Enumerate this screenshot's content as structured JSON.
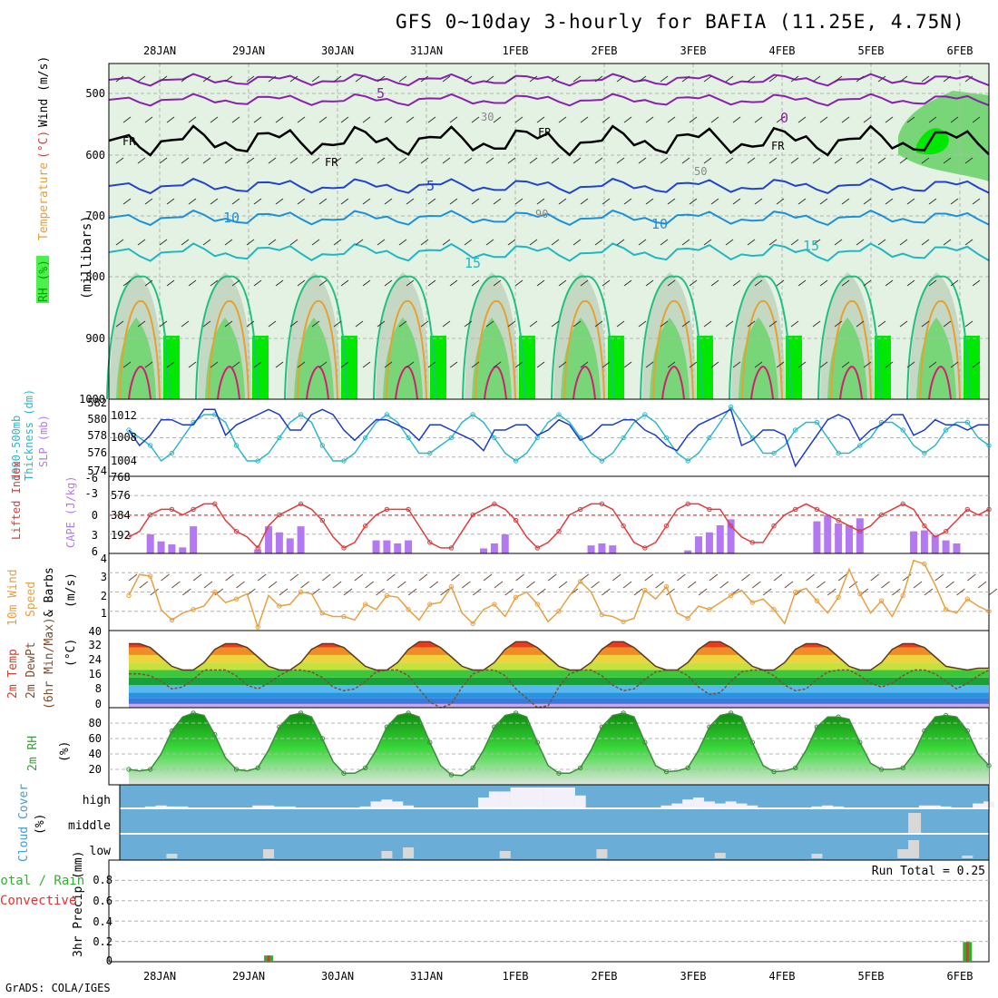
{
  "title": "GFS 0~10day 3-hourly for BAFIA (11.25E, 4.75N)",
  "credit": "GrADS: COLA/IGES",
  "dates": [
    "28JAN",
    "29JAN",
    "30JAN",
    "31JAN",
    "1FEB",
    "2FEB",
    "3FEB",
    "4FEB",
    "5FEB",
    "6FEB"
  ],
  "colors": {
    "frame": "#000000",
    "grid": "#b4b4b4",
    "rh_light": "#e4f2e4",
    "rh_mid": "#c4d8c4",
    "rh_wet": "#78d678",
    "rh_sat": "#00e800",
    "thickness": "#2ab8c8",
    "slp": "#1c3cc8",
    "lifted": "#e03c3c",
    "cape": "#b478f0",
    "wind10": "#e8a040",
    "barb": "#6a4a3a",
    "dewpt": "#7a5030",
    "rh2m_line": "#3c8c3c",
    "cloud_bg": "#6aaed8",
    "cloud_fill": "#f4f0fa",
    "precip_total": "#30b030",
    "precip_conv": "#e83030"
  },
  "panels": {
    "upper_air": {
      "ylabels_left": [
        "RH (%)",
        "Temperature",
        "(°C)",
        "Wind (m/s)"
      ],
      "ylabel_units": "(millibars)",
      "yticks": [
        "500",
        "600",
        "700",
        "800",
        "900",
        "1000"
      ],
      "contour_labels": [
        "5",
        "10",
        "15",
        "FR",
        "FR",
        "FR",
        "FR",
        "0",
        "5",
        "10",
        "15",
        "30",
        "50",
        "90"
      ]
    },
    "thickness_slp": {
      "ylabel_left": "1000-500mb",
      "ylabel_left2": "Thickness (dm)",
      "ylabel_right": "SLP (mb)",
      "yticks_left": [
        "574",
        "576",
        "578",
        "580",
        "582"
      ],
      "yticks_right": [
        "1004",
        "1008",
        "1012"
      ]
    },
    "lifted_cape": {
      "ylabel_left": "Lifted Index",
      "ylabel_right": "CAPE (J/kg)",
      "yticks_left": [
        "-3",
        "0",
        "3",
        "6",
        "-6"
      ],
      "yticks_right": [
        "192",
        "384",
        "576",
        "768"
      ]
    },
    "wind10m": {
      "ylabel1": "10m Wind",
      "ylabel2": "Speed",
      "ylabel3": "& Barbs",
      "units": "(m/s)",
      "yticks": [
        "1",
        "2",
        "3",
        "4"
      ]
    },
    "temp2m": {
      "ylabel1": "2m Temp",
      "ylabel2": "2m DewPt",
      "ylabel3": "(6hr Min/Max)",
      "units": "(°C)",
      "yticks": [
        "0",
        "8",
        "16",
        "24",
        "32",
        "40"
      ]
    },
    "rh2m": {
      "ylabel": "2m RH",
      "units": "(%)",
      "yticks": [
        "20",
        "40",
        "60",
        "80"
      ]
    },
    "cloud": {
      "ylabel": "Cloud Cover",
      "units": "(%)",
      "levels": [
        "high",
        "middle",
        "low"
      ]
    },
    "precip": {
      "ylabel1": "Total / Rain",
      "ylabel2": "Convective",
      "ylabel3": "3hr Precip (mm)",
      "yticks": [
        "0",
        "0.2",
        "0.4",
        "0.6",
        "0.8"
      ],
      "run_total": "Run Total = 0.25"
    }
  },
  "chart_data": {
    "type": "meteogram",
    "time_axis": [
      "28JAN",
      "29JAN",
      "30JAN",
      "31JAN",
      "1FEB",
      "2FEB",
      "3FEB",
      "4FEB",
      "5FEB",
      "6FEB"
    ],
    "steps": 81,
    "slp_mb": [
      1010,
      1007,
      1009,
      1012,
      1012,
      1011,
      1011,
      1014,
      1014,
      1009,
      1011,
      1012,
      1013,
      1014,
      1013,
      1010,
      1010,
      1013,
      1014,
      1013,
      1010,
      1008,
      1010,
      1012,
      1012,
      1011,
      1010,
      1008,
      1011,
      1011,
      1010,
      1009,
      1008,
      1006,
      1010,
      1010,
      1011,
      1011,
      1009,
      1010,
      1012,
      1011,
      1008,
      1009,
      1011,
      1011,
      1012,
      1012,
      1010,
      1009,
      1007,
      1006,
      1009,
      1011,
      1012,
      1013,
      1014,
      1007,
      1008,
      1010,
      1010,
      1009,
      1003,
      1006,
      1009,
      1012,
      1013,
      1012,
      1008,
      1010,
      1011,
      1013,
      1013,
      1009,
      1010,
      1012,
      1011,
      1011,
      1010,
      1011,
      1011
    ],
    "thickness_dm": [
      579,
      578,
      577,
      575,
      576,
      578,
      580,
      581,
      581,
      580,
      577,
      575,
      575,
      576,
      578,
      580,
      581,
      580,
      577,
      575,
      575,
      576,
      578,
      580,
      581,
      580,
      578,
      576,
      576,
      577,
      578,
      580,
      581,
      580,
      578,
      576,
      575,
      576,
      578,
      580,
      581,
      580,
      578,
      576,
      575,
      576,
      578,
      580,
      581,
      580,
      578,
      576,
      575,
      576,
      578,
      580,
      582,
      580,
      578,
      576,
      576,
      577,
      579,
      580,
      580,
      578,
      576,
      576,
      577,
      578,
      580,
      580,
      579,
      577,
      576,
      577,
      579,
      580,
      580,
      578,
      577
    ],
    "lifted_index": [
      4,
      3,
      0,
      -1,
      -1,
      0,
      -1,
      -2,
      -2,
      1,
      3,
      4,
      6,
      2,
      0,
      -1,
      -2,
      -1,
      1,
      4,
      6,
      5,
      2,
      0,
      -1,
      -1,
      -1,
      2,
      5,
      6,
      6,
      3,
      0,
      -1,
      -2,
      -1,
      1,
      4,
      6,
      5,
      3,
      0,
      -1,
      -2,
      -2,
      -1,
      2,
      5,
      6,
      5,
      2,
      -1,
      -2,
      -2,
      -1,
      -1,
      2,
      4,
      5,
      5,
      2,
      0,
      -1,
      -2,
      -1,
      0,
      1,
      2,
      3,
      2,
      0,
      -1,
      -2,
      -1,
      2,
      4,
      3,
      1,
      -1,
      0,
      -1
    ],
    "cape_jkg": [
      0,
      0,
      190,
      120,
      90,
      60,
      270,
      0,
      0,
      0,
      0,
      0,
      40,
      270,
      210,
      150,
      270,
      0,
      0,
      0,
      0,
      0,
      0,
      130,
      130,
      100,
      130,
      0,
      0,
      0,
      0,
      0,
      0,
      50,
      100,
      190,
      0,
      0,
      0,
      0,
      0,
      0,
      0,
      80,
      100,
      80,
      0,
      0,
      0,
      0,
      0,
      0,
      30,
      170,
      210,
      280,
      340,
      0,
      0,
      0,
      0,
      0,
      0,
      0,
      320,
      380,
      300,
      280,
      350,
      0,
      0,
      0,
      0,
      220,
      230,
      180,
      130,
      100,
      0,
      0,
      0
    ],
    "wind10m_ms": [
      2.0,
      3.2,
      3.1,
      1.2,
      0.6,
      1.0,
      1.2,
      1.4,
      2.2,
      1.6,
      1.8,
      2.1,
      0.2,
      2.0,
      1.4,
      1.5,
      2.2,
      2.1,
      1.0,
      0.8,
      0.8,
      0.6,
      1.5,
      1.2,
      2.0,
      1.9,
      1.2,
      0.6,
      1.5,
      1.6,
      2.5,
      1.0,
      0.4,
      1.2,
      1.5,
      0.8,
      1.9,
      2.2,
      1.5,
      0.5,
      1.1,
      2.0,
      2.8,
      2.2,
      0.9,
      0.8,
      0.5,
      0.7,
      2.3,
      1.8,
      2.5,
      1.0,
      0.7,
      1.4,
      1.2,
      1.6,
      2.0,
      2.3,
      1.6,
      1.8,
      1.2,
      0.4,
      2.2,
      2.4,
      1.7,
      1.0,
      1.9,
      3.5,
      2.1,
      1.0,
      1.7,
      0.8,
      2.0,
      4.0,
      3.8,
      2.6,
      1.2,
      1.0,
      1.8,
      1.4,
      1.1
    ],
    "temp2m_c": [
      34,
      34,
      32,
      27,
      22,
      20,
      20,
      24,
      31,
      34,
      34,
      32,
      27,
      22,
      20,
      20,
      24,
      31,
      34,
      34,
      32,
      27,
      22,
      20,
      20,
      24,
      31,
      35,
      35,
      32,
      27,
      22,
      20,
      20,
      24,
      31,
      35,
      35,
      32,
      27,
      22,
      20,
      20,
      24,
      31,
      35,
      35,
      32,
      27,
      22,
      20,
      20,
      24,
      31,
      35,
      35,
      32,
      27,
      22,
      20,
      20,
      24,
      31,
      34,
      34,
      32,
      27,
      22,
      20,
      20,
      24,
      31,
      34,
      34,
      32,
      27,
      22,
      21,
      20,
      21,
      21
    ],
    "dewpt2m_c": [
      18,
      18,
      17,
      14,
      10,
      11,
      15,
      20,
      20,
      20,
      17,
      12,
      10,
      13,
      17,
      20,
      20,
      19,
      16,
      11,
      9,
      10,
      14,
      19,
      20,
      20,
      17,
      10,
      3,
      0,
      2,
      11,
      18,
      20,
      20,
      17,
      10,
      5,
      0,
      1,
      11,
      18,
      20,
      20,
      17,
      12,
      9,
      10,
      15,
      19,
      20,
      20,
      17,
      11,
      7,
      8,
      14,
      19,
      20,
      20,
      17,
      12,
      9,
      10,
      15,
      19,
      20,
      20,
      17,
      13,
      11,
      13,
      17,
      20,
      20,
      18,
      14,
      10,
      13,
      17,
      20
    ],
    "rh2m_pct": [
      20,
      18,
      20,
      40,
      70,
      88,
      93,
      90,
      65,
      35,
      20,
      18,
      22,
      45,
      75,
      90,
      93,
      88,
      60,
      30,
      15,
      15,
      22,
      45,
      75,
      90,
      93,
      88,
      55,
      25,
      13,
      12,
      22,
      45,
      75,
      90,
      93,
      88,
      55,
      25,
      15,
      15,
      22,
      45,
      75,
      90,
      93,
      88,
      55,
      25,
      17,
      18,
      22,
      45,
      75,
      90,
      93,
      88,
      55,
      25,
      17,
      18,
      22,
      45,
      75,
      88,
      88,
      85,
      55,
      28,
      20,
      20,
      22,
      40,
      70,
      88,
      90,
      88,
      70,
      40,
      25
    ],
    "cloud_high_pct": [
      0,
      0,
      5,
      10,
      5,
      5,
      0,
      0,
      0,
      0,
      0,
      0,
      10,
      10,
      5,
      5,
      0,
      0,
      0,
      0,
      0,
      0,
      5,
      30,
      40,
      30,
      10,
      0,
      0,
      0,
      0,
      0,
      0,
      50,
      80,
      80,
      100,
      100,
      100,
      100,
      100,
      100,
      60,
      0,
      0,
      0,
      0,
      0,
      0,
      0,
      10,
      20,
      40,
      50,
      30,
      20,
      30,
      20,
      10,
      0,
      0,
      0,
      0,
      0,
      5,
      10,
      5,
      0,
      0,
      0,
      0,
      0,
      0,
      0,
      10,
      10,
      5,
      0,
      0,
      20,
      30
    ],
    "precip_total_mm": [
      0,
      0,
      0,
      0,
      0,
      0,
      0,
      0,
      0,
      0,
      0,
      0,
      0,
      0.06,
      0,
      0,
      0,
      0,
      0,
      0,
      0,
      0,
      0,
      0,
      0,
      0,
      0,
      0,
      0,
      0,
      0,
      0,
      0,
      0,
      0,
      0,
      0,
      0,
      0,
      0,
      0,
      0,
      0,
      0,
      0,
      0,
      0,
      0,
      0,
      0,
      0,
      0,
      0,
      0,
      0,
      0,
      0,
      0,
      0,
      0,
      0,
      0,
      0,
      0,
      0,
      0,
      0,
      0,
      0,
      0,
      0,
      0,
      0,
      0,
      0,
      0,
      0,
      0,
      0.19,
      0,
      0
    ],
    "run_total_mm": 0.25
  }
}
